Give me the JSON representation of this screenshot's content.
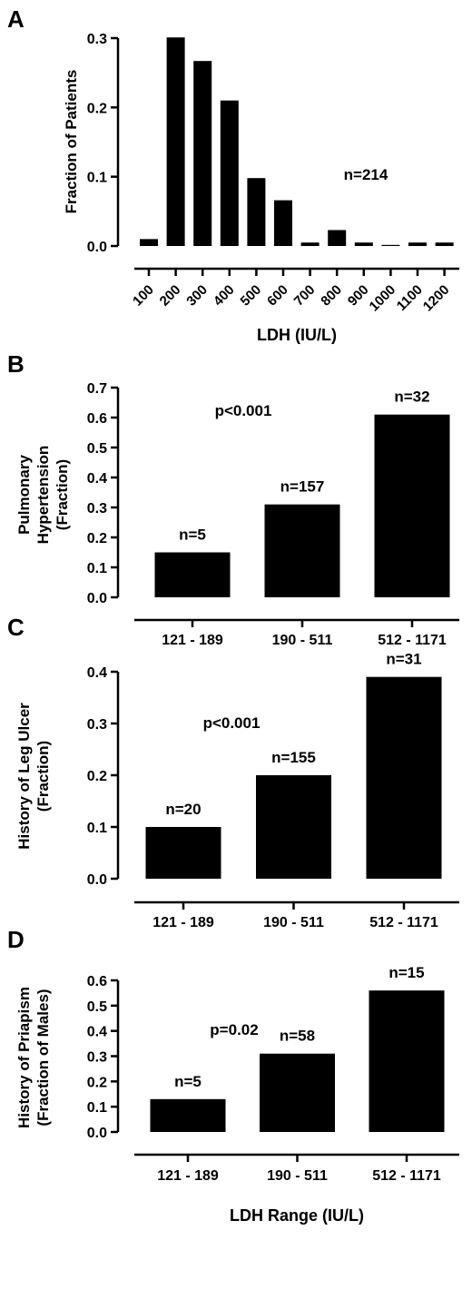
{
  "chart_data": [
    {
      "panel_letter": "A",
      "type": "bar",
      "categories": [
        "100",
        "200",
        "300",
        "400",
        "500",
        "600",
        "700",
        "800",
        "900",
        "1000",
        "1100",
        "1200"
      ],
      "values": [
        0.01,
        0.301,
        0.267,
        0.21,
        0.098,
        0.066,
        0.005,
        0.023,
        0.005,
        0.001,
        0.005,
        0.005
      ],
      "bar_labels": [],
      "xlabel": "LDH (IU/L)",
      "ylabel_lines": [
        "Fraction of Patients"
      ],
      "yticks": [
        0.0,
        0.1,
        0.2,
        0.3
      ],
      "ylim": [
        0,
        0.3
      ],
      "annotation": "n=214"
    },
    {
      "panel_letter": "B",
      "type": "bar",
      "categories": [
        "121 - 189",
        "190 - 511",
        "512 - 1171"
      ],
      "values": [
        0.15,
        0.31,
        0.61
      ],
      "bar_labels": [
        "n=5",
        "n=157",
        "n=32"
      ],
      "xlabel": "",
      "ylabel_lines": [
        "Pulmonary",
        "Hypertension",
        "(Fraction)"
      ],
      "yticks": [
        0.0,
        0.1,
        0.2,
        0.3,
        0.4,
        0.5,
        0.6,
        0.7
      ],
      "ylim": [
        0,
        0.7
      ],
      "annotation": "p<0.001"
    },
    {
      "panel_letter": "C",
      "type": "bar",
      "categories": [
        "121 - 189",
        "190 - 511",
        "512 - 1171"
      ],
      "values": [
        0.1,
        0.2,
        0.39
      ],
      "bar_labels": [
        "n=20",
        "n=155",
        "n=31"
      ],
      "xlabel": "",
      "ylabel_lines": [
        "History of Leg Ulcer",
        "(Fraction)"
      ],
      "yticks": [
        0.0,
        0.1,
        0.2,
        0.3,
        0.4
      ],
      "ylim": [
        0,
        0.4
      ],
      "annotation": "p<0.001"
    },
    {
      "panel_letter": "D",
      "type": "bar",
      "categories": [
        "121 - 189",
        "190 - 511",
        "512 - 1171"
      ],
      "values": [
        0.13,
        0.31,
        0.56
      ],
      "bar_labels": [
        "n=5",
        "n=58",
        "n=15"
      ],
      "xlabel": "LDH Range (IU/L)",
      "ylabel_lines": [
        "History of Priapism",
        "(Fraction of Males)"
      ],
      "yticks": [
        0.0,
        0.1,
        0.2,
        0.3,
        0.4,
        0.5,
        0.6
      ],
      "ylim": [
        0,
        0.6
      ],
      "annotation": "p=0.02"
    }
  ]
}
